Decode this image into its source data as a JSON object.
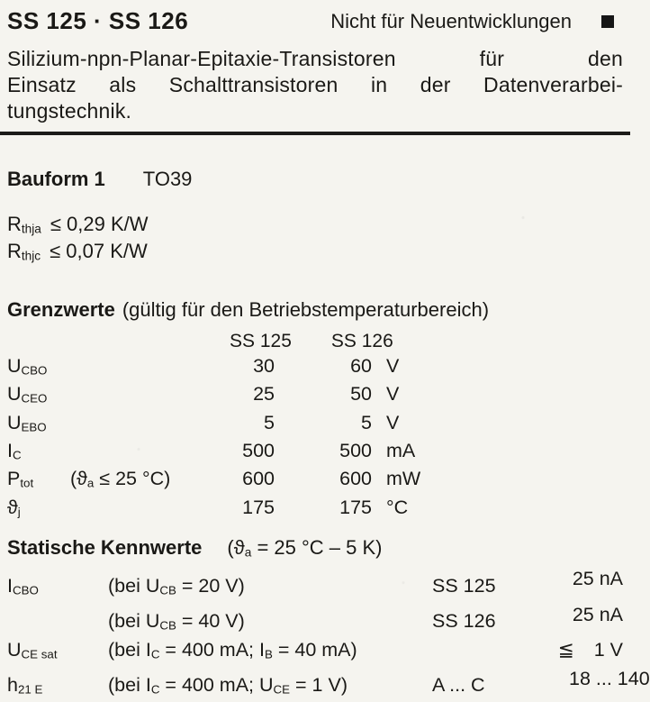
{
  "header": {
    "title": "SS 125 · SS 126",
    "notice": "Nicht für Neuentwicklungen"
  },
  "intro": {
    "lines": [
      "Silizium-npn-Planar-Epitaxie-Transistoren für den",
      "Einsatz als Schalttransistoren in der Datenverarbei-",
      "tungstechnik."
    ]
  },
  "package": {
    "label": "Bauform 1",
    "value": "TO39"
  },
  "thermal": {
    "rows": [
      {
        "sym": "R",
        "sub": "thja",
        "value": "≤ 0,29 K/W"
      },
      {
        "sym": "R",
        "sub": "thjc",
        "value": "≤ 0,07 K/W"
      }
    ]
  },
  "limits": {
    "heading": "Grenzwerte",
    "heading_note": "(gültig für den Betriebstemperaturbereich)",
    "col1": "SS 125",
    "col2": "SS 126",
    "rows": [
      {
        "sym": "U",
        "sub": "CBO",
        "v1": "30",
        "v2": "60",
        "unit": "V"
      },
      {
        "sym": "U",
        "sub": "CEO",
        "v1": "25",
        "v2": "50",
        "unit": "V"
      },
      {
        "sym": "U",
        "sub": "EBO",
        "v1": "5",
        "v2": "5",
        "unit": "V"
      },
      {
        "sym": "I",
        "sub": "C",
        "v1": "500",
        "v2": "500",
        "unit": "mA"
      },
      {
        "sym": "P",
        "sub": "tot",
        "cond_a": "(ϑ",
        "cond_sub": "a",
        "cond_b": " ≤ 25 °C)",
        "v1": "600",
        "v2": "600",
        "unit": "mW"
      },
      {
        "sym": "ϑ",
        "sub": "j",
        "v1": "175",
        "v2": "175",
        "unit": "°C"
      }
    ]
  },
  "statics": {
    "heading": "Statische Kennwerte",
    "cond_a": "(ϑ",
    "cond_sub": "a",
    "cond_b": " = 25 °C – 5 K)",
    "rows": [
      {
        "sym": "I",
        "sub": "CBO",
        "c_a": "(bei U",
        "c_asub": "CB",
        "c_b": " = 20 V)",
        "type": "SS 125",
        "rel": "",
        "value": "25 nA"
      },
      {
        "sym": "",
        "sub": "",
        "c_a": "(bei U",
        "c_asub": "CB",
        "c_b": " = 40 V)",
        "type": "SS 126",
        "rel": "",
        "value": "25 nA"
      },
      {
        "sym": "U",
        "sub": "CE sat",
        "c_a": "(bei I",
        "c_asub": "C",
        "c_b": " = 400 mA; I",
        "c_bsub": "B",
        "c_c": " = 40 mA)",
        "type": "",
        "rel": "≦",
        "value": "1 V"
      },
      {
        "sym": "h",
        "sub": "21 E",
        "c_a": "(bei I",
        "c_asub": "C",
        "c_b": " = 400 mA; U",
        "c_bsub": "CE",
        "c_c": " = 1 V)",
        "type": "A ... C",
        "rel": "",
        "value": "18 ... 140"
      }
    ]
  }
}
